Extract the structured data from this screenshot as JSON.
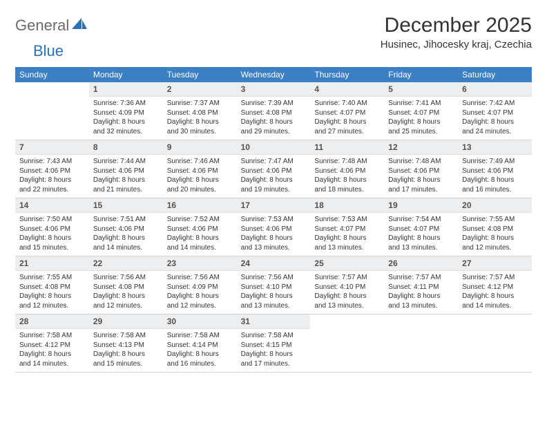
{
  "logo": {
    "word1": "General",
    "word2": "Blue",
    "text_color1": "#6b6b6b",
    "text_color2": "#2d70b3"
  },
  "title": "December 2025",
  "location": "Husinec, Jihocesky kraj, Czechia",
  "header_bg": "#3b7fc4",
  "header_text_color": "#ffffff",
  "daynum_bg": "#eceef0",
  "border_color": "#3b7fc4",
  "days_of_week": [
    "Sunday",
    "Monday",
    "Tuesday",
    "Wednesday",
    "Thursday",
    "Friday",
    "Saturday"
  ],
  "weeks": [
    [
      null,
      {
        "n": "1",
        "sr": "7:36 AM",
        "ss": "4:09 PM",
        "d1": "Daylight: 8 hours",
        "d2": "and 32 minutes."
      },
      {
        "n": "2",
        "sr": "7:37 AM",
        "ss": "4:08 PM",
        "d1": "Daylight: 8 hours",
        "d2": "and 30 minutes."
      },
      {
        "n": "3",
        "sr": "7:39 AM",
        "ss": "4:08 PM",
        "d1": "Daylight: 8 hours",
        "d2": "and 29 minutes."
      },
      {
        "n": "4",
        "sr": "7:40 AM",
        "ss": "4:07 PM",
        "d1": "Daylight: 8 hours",
        "d2": "and 27 minutes."
      },
      {
        "n": "5",
        "sr": "7:41 AM",
        "ss": "4:07 PM",
        "d1": "Daylight: 8 hours",
        "d2": "and 25 minutes."
      },
      {
        "n": "6",
        "sr": "7:42 AM",
        "ss": "4:07 PM",
        "d1": "Daylight: 8 hours",
        "d2": "and 24 minutes."
      }
    ],
    [
      {
        "n": "7",
        "sr": "7:43 AM",
        "ss": "4:06 PM",
        "d1": "Daylight: 8 hours",
        "d2": "and 22 minutes."
      },
      {
        "n": "8",
        "sr": "7:44 AM",
        "ss": "4:06 PM",
        "d1": "Daylight: 8 hours",
        "d2": "and 21 minutes."
      },
      {
        "n": "9",
        "sr": "7:46 AM",
        "ss": "4:06 PM",
        "d1": "Daylight: 8 hours",
        "d2": "and 20 minutes."
      },
      {
        "n": "10",
        "sr": "7:47 AM",
        "ss": "4:06 PM",
        "d1": "Daylight: 8 hours",
        "d2": "and 19 minutes."
      },
      {
        "n": "11",
        "sr": "7:48 AM",
        "ss": "4:06 PM",
        "d1": "Daylight: 8 hours",
        "d2": "and 18 minutes."
      },
      {
        "n": "12",
        "sr": "7:48 AM",
        "ss": "4:06 PM",
        "d1": "Daylight: 8 hours",
        "d2": "and 17 minutes."
      },
      {
        "n": "13",
        "sr": "7:49 AM",
        "ss": "4:06 PM",
        "d1": "Daylight: 8 hours",
        "d2": "and 16 minutes."
      }
    ],
    [
      {
        "n": "14",
        "sr": "7:50 AM",
        "ss": "4:06 PM",
        "d1": "Daylight: 8 hours",
        "d2": "and 15 minutes."
      },
      {
        "n": "15",
        "sr": "7:51 AM",
        "ss": "4:06 PM",
        "d1": "Daylight: 8 hours",
        "d2": "and 14 minutes."
      },
      {
        "n": "16",
        "sr": "7:52 AM",
        "ss": "4:06 PM",
        "d1": "Daylight: 8 hours",
        "d2": "and 14 minutes."
      },
      {
        "n": "17",
        "sr": "7:53 AM",
        "ss": "4:06 PM",
        "d1": "Daylight: 8 hours",
        "d2": "and 13 minutes."
      },
      {
        "n": "18",
        "sr": "7:53 AM",
        "ss": "4:07 PM",
        "d1": "Daylight: 8 hours",
        "d2": "and 13 minutes."
      },
      {
        "n": "19",
        "sr": "7:54 AM",
        "ss": "4:07 PM",
        "d1": "Daylight: 8 hours",
        "d2": "and 13 minutes."
      },
      {
        "n": "20",
        "sr": "7:55 AM",
        "ss": "4:08 PM",
        "d1": "Daylight: 8 hours",
        "d2": "and 12 minutes."
      }
    ],
    [
      {
        "n": "21",
        "sr": "7:55 AM",
        "ss": "4:08 PM",
        "d1": "Daylight: 8 hours",
        "d2": "and 12 minutes."
      },
      {
        "n": "22",
        "sr": "7:56 AM",
        "ss": "4:08 PM",
        "d1": "Daylight: 8 hours",
        "d2": "and 12 minutes."
      },
      {
        "n": "23",
        "sr": "7:56 AM",
        "ss": "4:09 PM",
        "d1": "Daylight: 8 hours",
        "d2": "and 12 minutes."
      },
      {
        "n": "24",
        "sr": "7:56 AM",
        "ss": "4:10 PM",
        "d1": "Daylight: 8 hours",
        "d2": "and 13 minutes."
      },
      {
        "n": "25",
        "sr": "7:57 AM",
        "ss": "4:10 PM",
        "d1": "Daylight: 8 hours",
        "d2": "and 13 minutes."
      },
      {
        "n": "26",
        "sr": "7:57 AM",
        "ss": "4:11 PM",
        "d1": "Daylight: 8 hours",
        "d2": "and 13 minutes."
      },
      {
        "n": "27",
        "sr": "7:57 AM",
        "ss": "4:12 PM",
        "d1": "Daylight: 8 hours",
        "d2": "and 14 minutes."
      }
    ],
    [
      {
        "n": "28",
        "sr": "7:58 AM",
        "ss": "4:12 PM",
        "d1": "Daylight: 8 hours",
        "d2": "and 14 minutes."
      },
      {
        "n": "29",
        "sr": "7:58 AM",
        "ss": "4:13 PM",
        "d1": "Daylight: 8 hours",
        "d2": "and 15 minutes."
      },
      {
        "n": "30",
        "sr": "7:58 AM",
        "ss": "4:14 PM",
        "d1": "Daylight: 8 hours",
        "d2": "and 16 minutes."
      },
      {
        "n": "31",
        "sr": "7:58 AM",
        "ss": "4:15 PM",
        "d1": "Daylight: 8 hours",
        "d2": "and 17 minutes."
      },
      null,
      null,
      null
    ]
  ],
  "labels": {
    "sunrise_prefix": "Sunrise: ",
    "sunset_prefix": "Sunset: "
  }
}
